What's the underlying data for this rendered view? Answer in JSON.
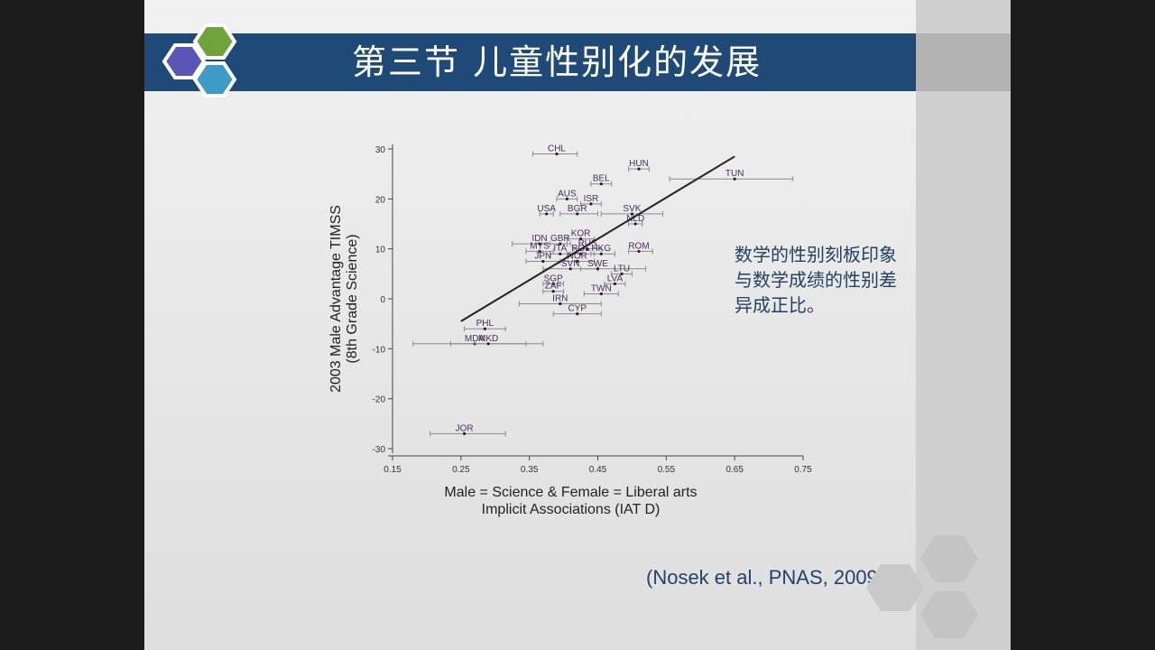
{
  "slide": {
    "title": "第三节 儿童性别化的发展",
    "note_lines": [
      "数学的性别刻板印象",
      "与数学成绩的性别差",
      "异成正比。"
    ],
    "citation": "(Nosek et al., PNAS, 2009)",
    "colors": {
      "title_bar": "#1f4a78",
      "hex_purple": "#5b55b8",
      "hex_green": "#7fb344",
      "hex_blue": "#3e9ac6",
      "text_blue": "#23425f"
    }
  },
  "chart_data": {
    "type": "scatter",
    "title": "",
    "ylabel_lines": [
      "2003 Male Advantage TIMSS",
      "(8th Grade Science)"
    ],
    "xlabel_lines": [
      "Male = Science & Female = Liberal arts",
      "Implicit Associations (IAT D)"
    ],
    "xlim": [
      0.15,
      0.75
    ],
    "ylim": [
      -30,
      30
    ],
    "xticks": [
      "0.15",
      "0.25",
      "0.35",
      "0.45",
      "0.55",
      "0.65",
      "0.75"
    ],
    "yticks": [
      "30",
      "20",
      "10",
      "0",
      "-10",
      "-20",
      "-30"
    ],
    "trendline": {
      "x1": 0.25,
      "y1": -4.5,
      "x2": 0.65,
      "y2": 28.5
    },
    "points": [
      {
        "label": "CHL",
        "x": 0.39,
        "y": 29,
        "xerr": [
          0.355,
          0.42
        ]
      },
      {
        "label": "HUN",
        "x": 0.51,
        "y": 26,
        "xerr": [
          0.495,
          0.525
        ]
      },
      {
        "label": "TUN",
        "x": 0.65,
        "y": 24,
        "xerr": [
          0.555,
          0.735
        ]
      },
      {
        "label": "BEL",
        "x": 0.455,
        "y": 23,
        "xerr": [
          0.44,
          0.47
        ]
      },
      {
        "label": "AUS",
        "x": 0.405,
        "y": 20,
        "xerr": [
          0.39,
          0.42
        ]
      },
      {
        "label": "ISR",
        "x": 0.44,
        "y": 19,
        "xerr": [
          0.425,
          0.455
        ]
      },
      {
        "label": "USA",
        "x": 0.375,
        "y": 17,
        "xerr": [
          0.365,
          0.385
        ]
      },
      {
        "label": "BGR",
        "x": 0.42,
        "y": 17,
        "xerr": [
          0.395,
          0.45
        ]
      },
      {
        "label": "SVK",
        "x": 0.5,
        "y": 17,
        "xerr": [
          0.455,
          0.545
        ]
      },
      {
        "label": "NLD",
        "x": 0.505,
        "y": 15,
        "xerr": [
          0.495,
          0.515
        ]
      },
      {
        "label": "KOR",
        "x": 0.425,
        "y": 12,
        "xerr": [
          0.405,
          0.445
        ]
      },
      {
        "label": "IDN",
        "x": 0.365,
        "y": 11,
        "xerr": [
          0.325,
          0.405
        ]
      },
      {
        "label": "GBR",
        "x": 0.395,
        "y": 11,
        "xerr": [
          0.38,
          0.41
        ]
      },
      {
        "label": "RUS",
        "x": 0.435,
        "y": 10,
        "xerr": [
          0.415,
          0.455
        ]
      },
      {
        "label": "ROM",
        "x": 0.51,
        "y": 9.5,
        "xerr": [
          0.495,
          0.53
        ]
      },
      {
        "label": "MYS",
        "x": 0.365,
        "y": 9.5,
        "xerr": [
          0.345,
          0.385
        ]
      },
      {
        "label": "ITA",
        "x": 0.395,
        "y": 9,
        "xerr": [
          0.38,
          0.41
        ]
      },
      {
        "label": "ROL",
        "x": 0.425,
        "y": 9,
        "xerr": [
          0.405,
          0.445
        ]
      },
      {
        "label": "HKG",
        "x": 0.455,
        "y": 9,
        "xerr": [
          0.44,
          0.475
        ]
      },
      {
        "label": "JPN",
        "x": 0.37,
        "y": 7.5,
        "xerr": [
          0.345,
          0.395
        ]
      },
      {
        "label": "NOR",
        "x": 0.42,
        "y": 7.5,
        "xerr": [
          0.4,
          0.445
        ]
      },
      {
        "label": "SVN",
        "x": 0.41,
        "y": 6,
        "xerr": [
          0.37,
          0.45
        ]
      },
      {
        "label": "SWE",
        "x": 0.45,
        "y": 6,
        "xerr": [
          0.425,
          0.52
        ]
      },
      {
        "label": "LTU",
        "x": 0.485,
        "y": 5,
        "xerr": [
          0.47,
          0.5
        ]
      },
      {
        "label": "SGP",
        "x": 0.385,
        "y": 3,
        "xerr": [
          0.37,
          0.4
        ]
      },
      {
        "label": "LVA",
        "x": 0.475,
        "y": 3,
        "xerr": [
          0.46,
          0.49
        ]
      },
      {
        "label": "ZAF",
        "x": 0.385,
        "y": 1.5,
        "xerr": [
          0.37,
          0.4
        ]
      },
      {
        "label": "TWN",
        "x": 0.455,
        "y": 1,
        "xerr": [
          0.43,
          0.48
        ]
      },
      {
        "label": "IRN",
        "x": 0.395,
        "y": -1,
        "xerr": [
          0.335,
          0.455
        ]
      },
      {
        "label": "CYP",
        "x": 0.42,
        "y": -3,
        "xerr": [
          0.385,
          0.455
        ]
      },
      {
        "label": "PHL",
        "x": 0.285,
        "y": -6,
        "xerr": [
          0.255,
          0.315
        ]
      },
      {
        "label": "MDA",
        "x": 0.27,
        "y": -9,
        "xerr": [
          0.18,
          0.37
        ]
      },
      {
        "label": "MKD",
        "x": 0.29,
        "y": -9,
        "xerr": [
          0.235,
          0.345
        ]
      },
      {
        "label": "JOR",
        "x": 0.255,
        "y": -27,
        "xerr": [
          0.205,
          0.315
        ]
      }
    ]
  }
}
